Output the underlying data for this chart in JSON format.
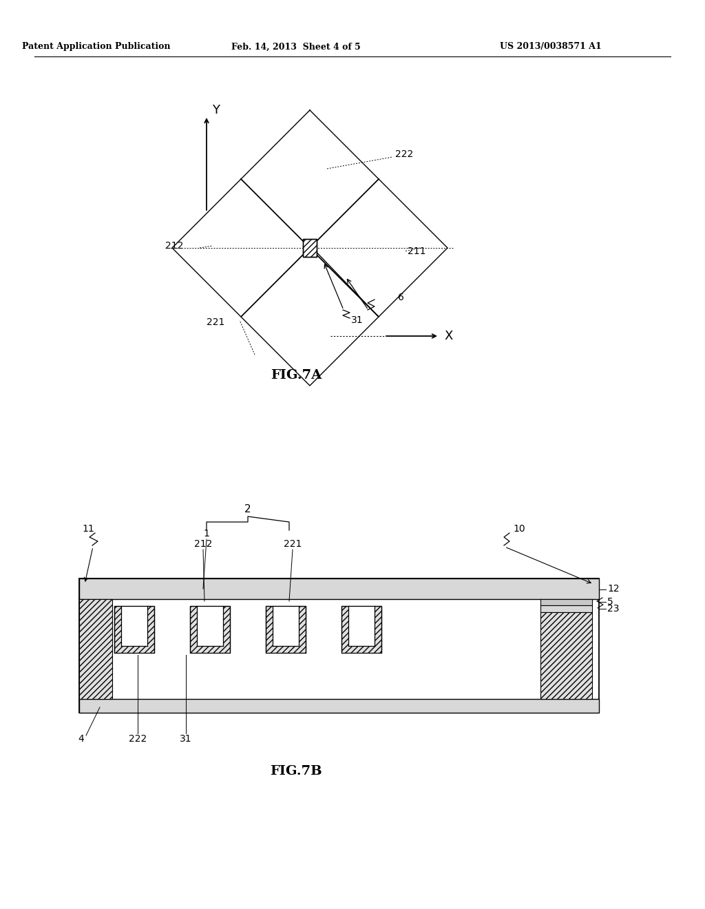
{
  "header_left": "Patent Application Publication",
  "header_mid": "Feb. 14, 2013  Sheet 4 of 5",
  "header_right": "US 2013/0038571 A1",
  "fig7a_title": "FIG.7A",
  "fig7b_title": "FIG.7B",
  "bg_color": "#ffffff",
  "line_color": "#000000",
  "hatch_color": "#555555",
  "label_color": "#333333"
}
